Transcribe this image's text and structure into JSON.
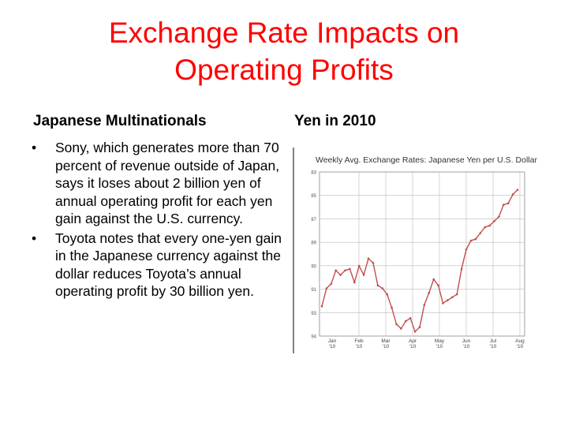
{
  "slide": {
    "title_line1": "Exchange Rate Impacts on",
    "title_line2": "Operating Profits",
    "left_heading": "Japanese Multinationals",
    "right_heading": "Yen in 2010",
    "bullets": [
      "Sony, which generates more than 70 percent of revenue outside of Japan, says it loses about 2 billion yen of annual operating profit for each yen gain against the U.S. currency.",
      "Toyota notes that every one-yen gain in the Japanese currency against the dollar reduces Toyota’s annual operating profit by 30 billion yen."
    ]
  },
  "chart_data": {
    "type": "line",
    "title": "Weekly Avg. Exchange Rates: Japanese Yen per U.S. Dollar",
    "ylim": [
      94,
      83
    ],
    "yticks": [
      "83",
      "85",
      "87",
      "89",
      "90",
      "91",
      "93",
      "94"
    ],
    "xticks": [
      {
        "label": "Jan",
        "sub": "'10"
      },
      {
        "label": "Feb",
        "sub": "'10"
      },
      {
        "label": "Mar",
        "sub": "'10"
      },
      {
        "label": "Apr",
        "sub": "'10"
      },
      {
        "label": "May",
        "sub": "'10"
      },
      {
        "label": "Jun",
        "sub": "'10"
      },
      {
        "label": "Jul",
        "sub": "'10"
      },
      {
        "label": "Aug",
        "sub": "'10"
      }
    ],
    "grid": true,
    "line_color": "#c0504d",
    "series": [
      {
        "values": [
          92.0,
          90.8,
          90.5,
          89.6,
          89.9,
          89.6,
          89.5,
          90.4,
          89.3,
          89.9,
          88.8,
          89.1,
          90.6,
          90.8,
          91.2,
          92.1,
          93.2,
          93.5,
          93.0,
          92.8,
          93.7,
          93.4,
          91.9,
          91.1,
          90.2,
          90.6,
          91.8,
          91.6,
          91.4,
          91.2,
          89.5,
          88.2,
          87.6,
          87.5,
          87.1,
          86.7,
          86.6,
          86.3,
          86.0,
          85.2,
          85.1,
          84.5,
          84.2
        ]
      }
    ]
  }
}
